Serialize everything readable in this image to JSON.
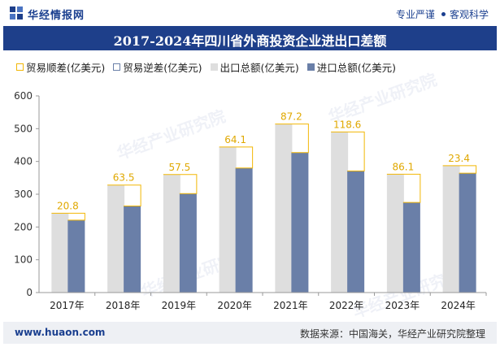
{
  "header": {
    "brand": "华经情报网",
    "tag1": "专业严谨",
    "tag2": "客观科学"
  },
  "watermark": "华经产业研究院",
  "footer": {
    "url": "www.huaon.com",
    "source": "数据来源：中国海关，华经产业研究院整理"
  },
  "colors": {
    "header_bg": "#1e3f8a",
    "export_bar": "#dedede",
    "import_bar": "#6a7fa8",
    "surplus_line": "#f2b705",
    "label_text": "#e0a800"
  },
  "chart_data": {
    "type": "bar",
    "title": "2017-2024年四川省外商投资企业进出口差额",
    "legend": [
      "贸易顺差(亿美元)",
      "贸易逆差(亿美元)",
      "出口总额(亿美元)",
      "进口总额(亿美元)"
    ],
    "legend_placement": "top-left",
    "categories": [
      "2017年",
      "2018年",
      "2019年",
      "2020年",
      "2021年",
      "2022年",
      "2023年",
      "2024年"
    ],
    "series": [
      {
        "name": "出口总额(亿美元)",
        "values": [
          242,
          328,
          360,
          444,
          514,
          490,
          361,
          387
        ]
      },
      {
        "name": "进口总额(亿美元)",
        "values": [
          221,
          264,
          302,
          380,
          427,
          371,
          275,
          364
        ]
      },
      {
        "name": "贸易顺差(亿美元)",
        "values": [
          20.8,
          63.5,
          57.5,
          64.1,
          87.2,
          118.6,
          86.1,
          23.4
        ]
      }
    ],
    "ylim": [
      0,
      600
    ],
    "yticks": [
      0,
      100,
      200,
      300,
      400,
      500,
      600
    ],
    "grid": false
  }
}
